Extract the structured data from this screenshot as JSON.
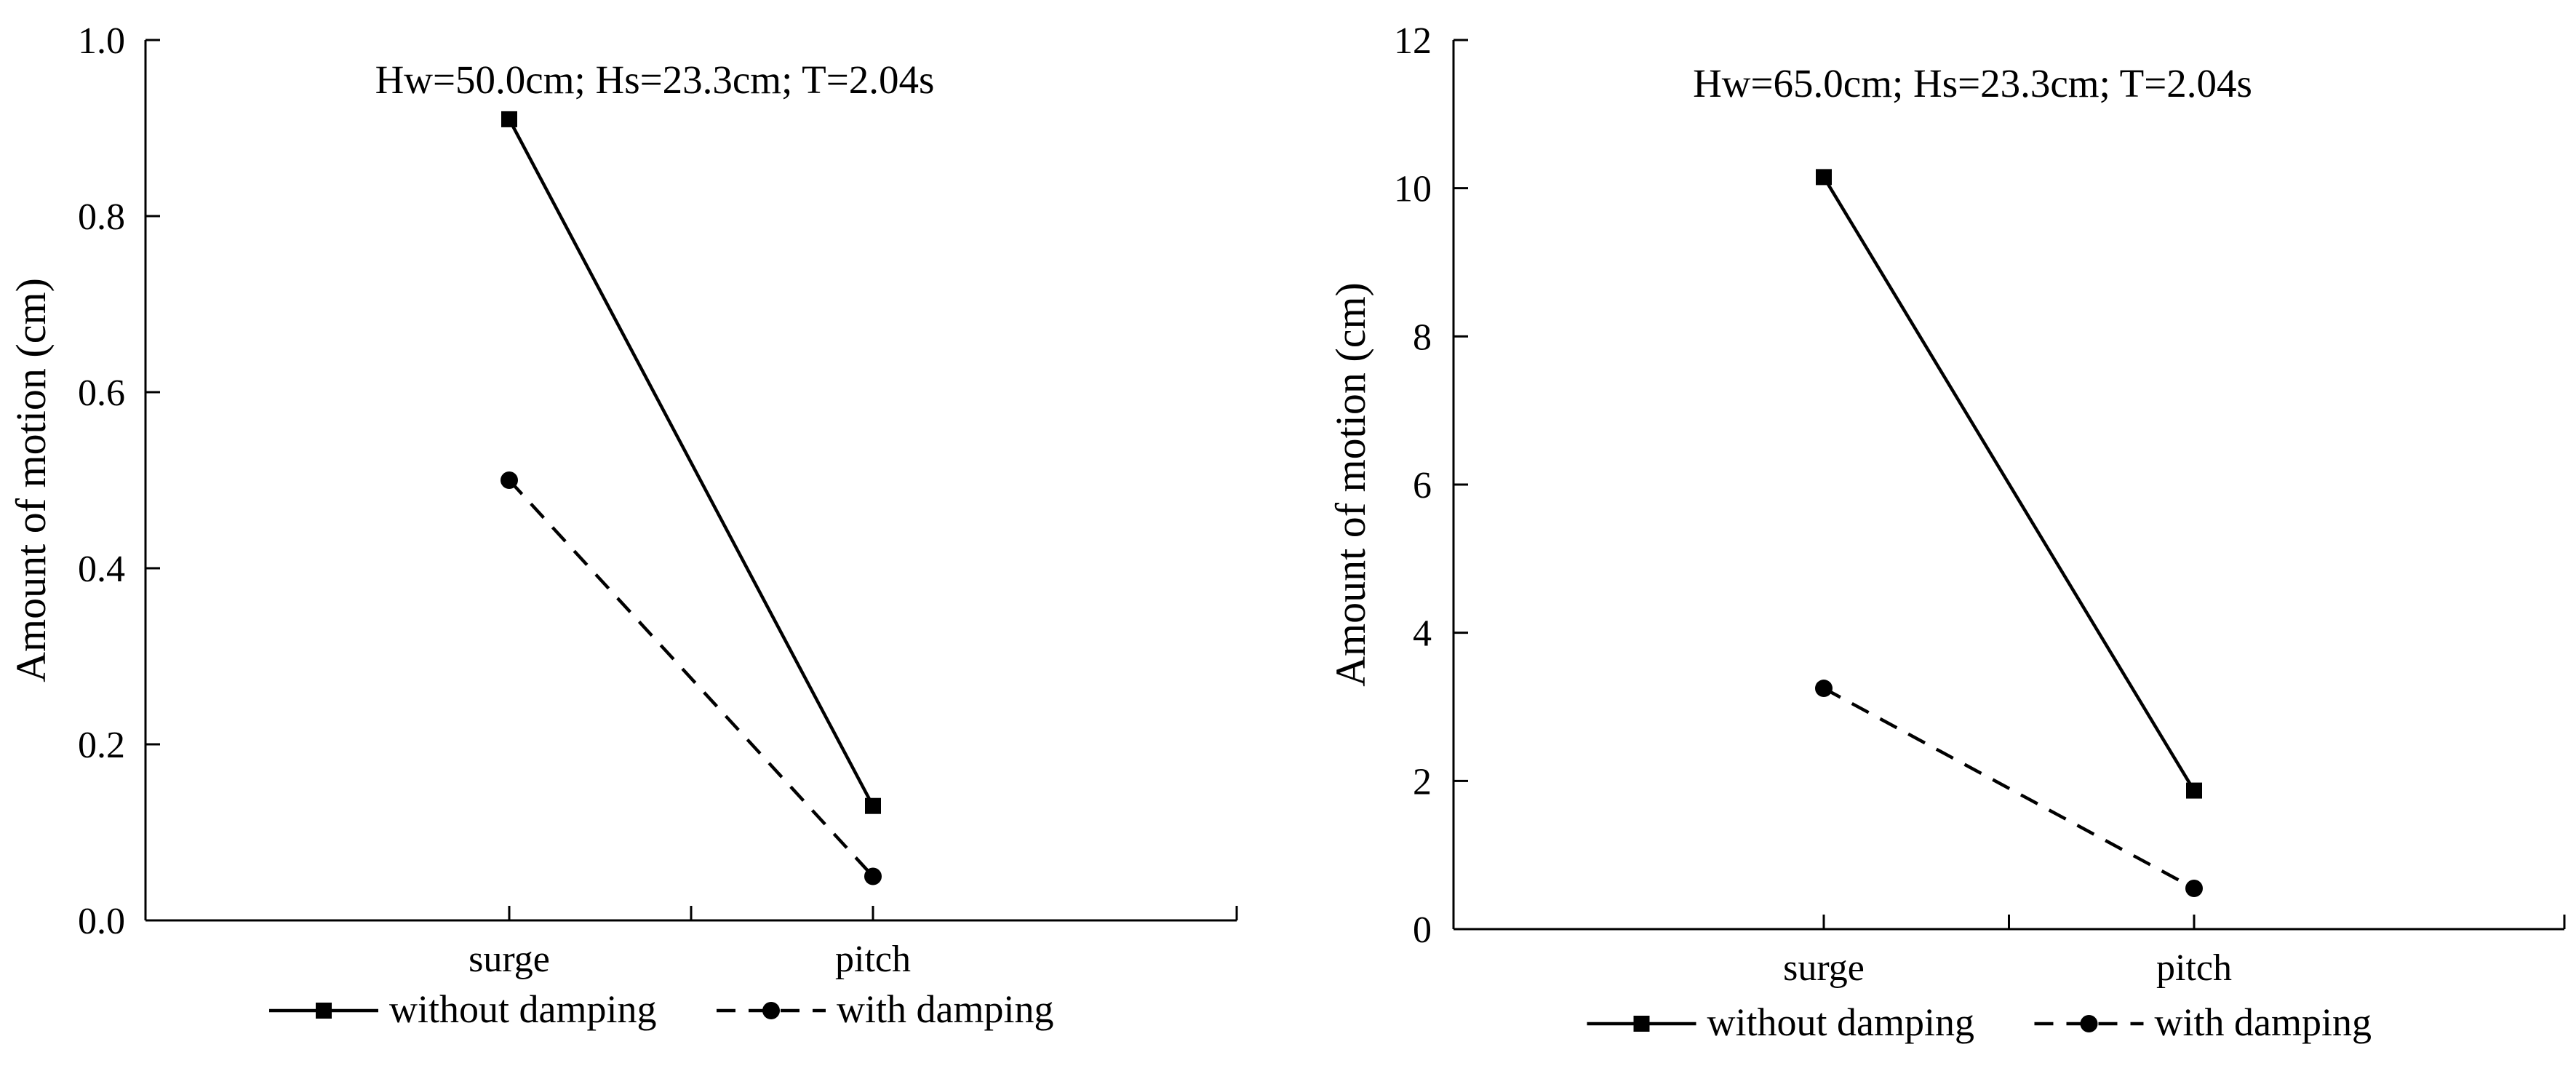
{
  "chart_data": [
    {
      "type": "line",
      "title": "Hw=50.0cm; Hs=23.3cm; T=2.04s",
      "xlabel": "",
      "ylabel": "Amount of motion (cm)",
      "categories": [
        "surge",
        "pitch"
      ],
      "ylim": [
        0,
        1.0
      ],
      "yticks": [
        "0.0",
        "0.2",
        "0.4",
        "0.6",
        "0.8",
        "1.0"
      ],
      "ytick_values": [
        0,
        0.2,
        0.4,
        0.6,
        0.8,
        1.0
      ],
      "series": [
        {
          "name": "without damping",
          "marker": "square",
          "style": "solid",
          "values": [
            0.91,
            0.13
          ]
        },
        {
          "name": "with damping",
          "marker": "circle",
          "style": "dashed",
          "values": [
            0.5,
            0.05
          ]
        }
      ],
      "legend_position": "bottom"
    },
    {
      "type": "line",
      "title": "Hw=65.0cm; Hs=23.3cm; T=2.04s",
      "xlabel": "",
      "ylabel": "Amount of motion (cm)",
      "categories": [
        "surge",
        "pitch"
      ],
      "ylim": [
        0,
        12
      ],
      "yticks": [
        "0",
        "2",
        "4",
        "6",
        "8",
        "10",
        "12"
      ],
      "ytick_values": [
        0,
        2,
        4,
        6,
        8,
        10,
        12
      ],
      "series": [
        {
          "name": "without damping",
          "marker": "square",
          "style": "solid",
          "values": [
            10.15,
            1.87
          ]
        },
        {
          "name": "with damping",
          "marker": "circle",
          "style": "dashed",
          "values": [
            3.25,
            0.55
          ]
        }
      ],
      "legend_position": "bottom"
    }
  ]
}
